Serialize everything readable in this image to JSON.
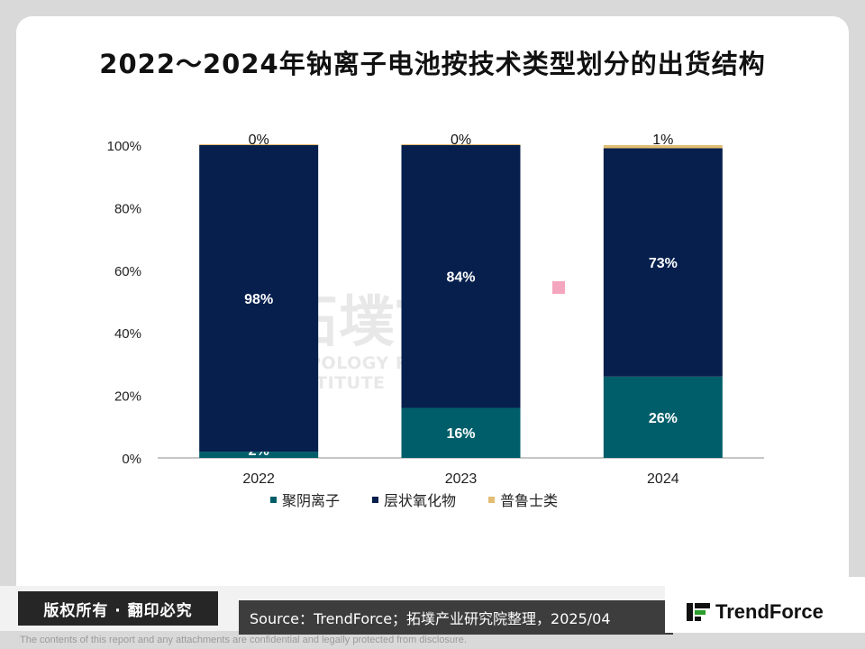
{
  "title": "2022～2024年钠离子电池按技术类型划分的出货结构",
  "colors": {
    "polyanion": "#005e6a",
    "layered_oxide": "#061f4d",
    "prussian": "#e2bd73"
  },
  "chart_data": {
    "type": "bar",
    "stacked": true,
    "categories": [
      "2022",
      "2023",
      "2024"
    ],
    "series": [
      {
        "name": "聚阴离子",
        "values": [
          2,
          16,
          26
        ],
        "labels": [
          "2%",
          "16%",
          "26%"
        ]
      },
      {
        "name": "层状氧化物",
        "values": [
          98,
          84,
          73
        ],
        "labels": [
          "98%",
          "84%",
          "73%"
        ]
      },
      {
        "name": "普鲁士类",
        "values": [
          0,
          0,
          1
        ],
        "labels": [
          "0%",
          "0%",
          "1%"
        ]
      }
    ],
    "ylim": [
      0,
      100
    ],
    "yticks": [
      "0%",
      "20%",
      "40%",
      "60%",
      "80%",
      "100%"
    ],
    "grid": false,
    "legend_position": "bottom"
  },
  "watermark": {
    "main": "拓墣TRI",
    "sub": "TOPOLOGY RESEARCH INSTITUTE"
  },
  "footer": {
    "copyright": "版权所有 · 翻印必究",
    "source": "Source：TrendForce；拓墣产业研究院整理，2025/04",
    "logo": "TrendForce",
    "disclaimer": "The contents of this report and any attachments are confidential and legally protected from disclosure."
  }
}
